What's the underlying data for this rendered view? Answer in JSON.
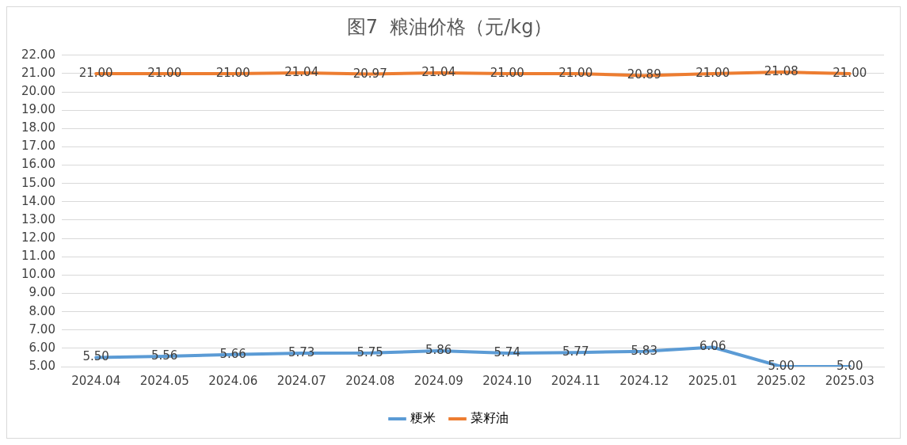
{
  "chart_data": {
    "type": "line",
    "title": "图7  粮油价格（元/kg）",
    "categories": [
      "2024.04",
      "2024.05",
      "2024.06",
      "2024.07",
      "2024.08",
      "2024.09",
      "2024.10",
      "2024.11",
      "2024.12",
      "2025.01",
      "2025.02",
      "2025.03"
    ],
    "series": [
      {
        "name": "粳米",
        "color": "#5b9bd5",
        "values": [
          5.5,
          5.56,
          5.66,
          5.73,
          5.75,
          5.86,
          5.74,
          5.77,
          5.83,
          6.06,
          5.0,
          5.0
        ],
        "value_labels": [
          "5.50",
          "5.56",
          "5.66",
          "5.73",
          "5.75",
          "5.86",
          "5.74",
          "5.77",
          "5.83",
          "6.06",
          "5.00",
          "5.00"
        ]
      },
      {
        "name": "菜籽油",
        "color": "#ed7d31",
        "values": [
          21.0,
          21.0,
          21.0,
          21.04,
          20.97,
          21.04,
          21.0,
          21.0,
          20.89,
          21.0,
          21.08,
          21.0
        ],
        "value_labels": [
          "21.00",
          "21.00",
          "21.00",
          "21.04",
          "20.97",
          "21.04",
          "21.00",
          "21.00",
          "20.89",
          "21.00",
          "21.08",
          "21.00"
        ]
      }
    ],
    "ylim": [
      5,
      22
    ],
    "yticks": [
      {
        "value": 5,
        "label": "5.00"
      },
      {
        "value": 6,
        "label": "6.00"
      },
      {
        "value": 7,
        "label": "7.00"
      },
      {
        "value": 8,
        "label": "8.00"
      },
      {
        "value": 9,
        "label": "9.00"
      },
      {
        "value": 10,
        "label": "10.00"
      },
      {
        "value": 11,
        "label": "11.00"
      },
      {
        "value": 12,
        "label": "12.00"
      },
      {
        "value": 13,
        "label": "13.00"
      },
      {
        "value": 14,
        "label": "14.00"
      },
      {
        "value": 15,
        "label": "15.00"
      },
      {
        "value": 16,
        "label": "16.00"
      },
      {
        "value": 17,
        "label": "17.00"
      },
      {
        "value": 18,
        "label": "18.00"
      },
      {
        "value": 19,
        "label": "19.00"
      },
      {
        "value": 20,
        "label": "20.00"
      },
      {
        "value": 21,
        "label": "21.00"
      },
      {
        "value": 22,
        "label": "22.00"
      }
    ],
    "grid": "y",
    "legend": "bottom",
    "marker": "none",
    "line_style": "solid"
  }
}
